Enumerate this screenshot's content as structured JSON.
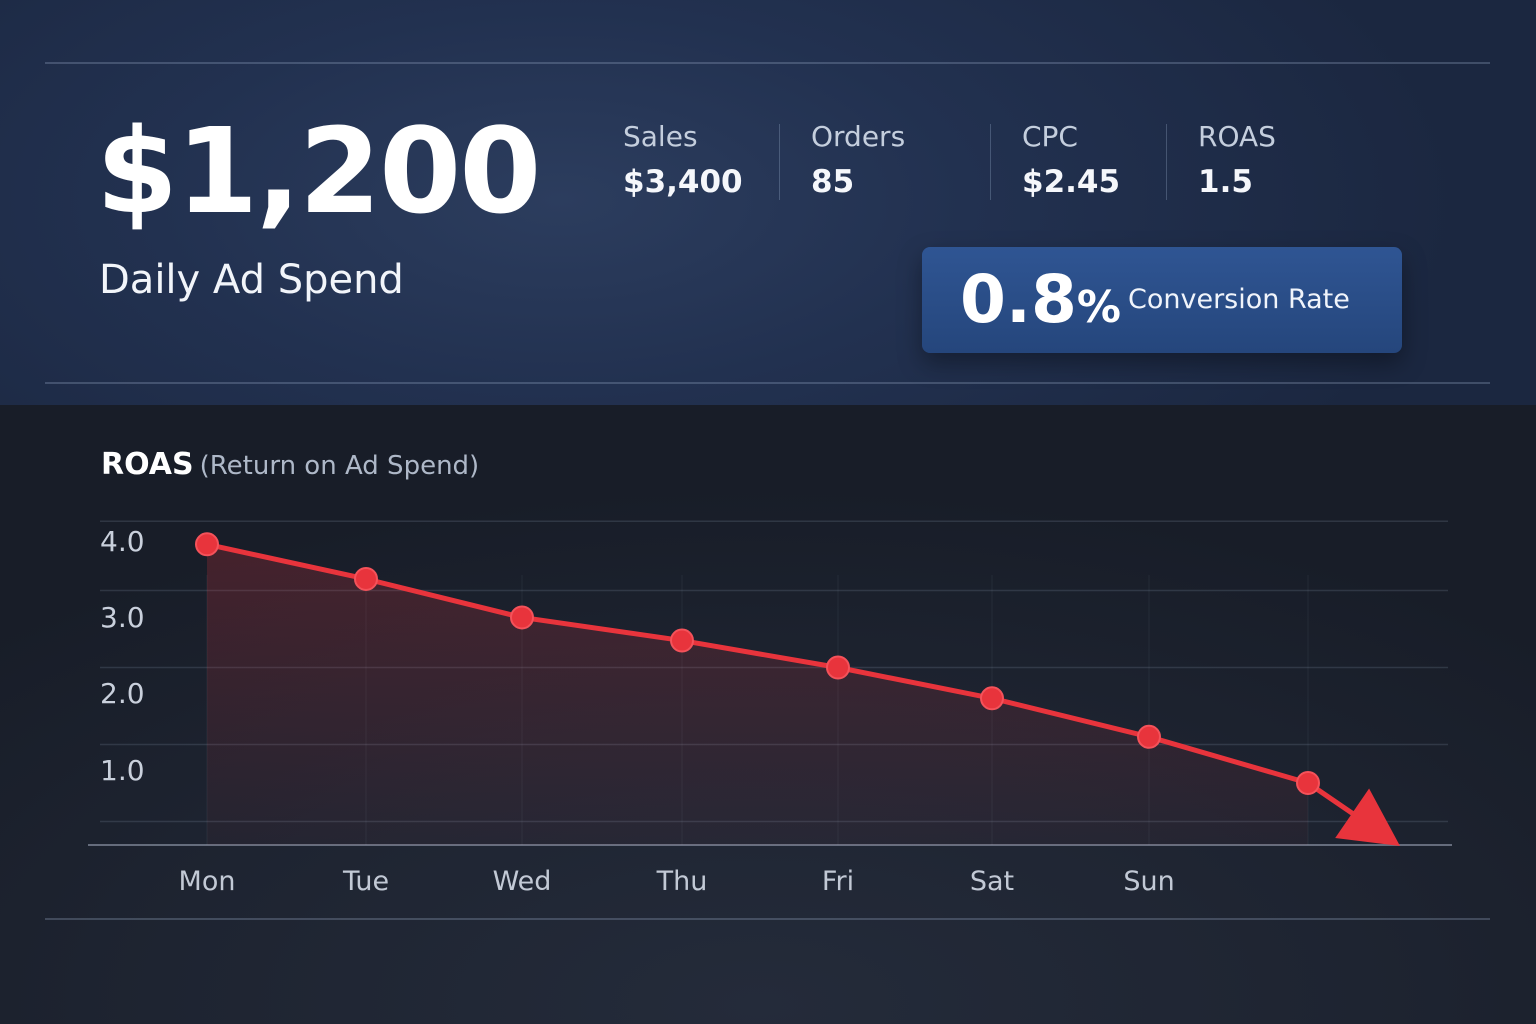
{
  "summary": {
    "ad_spend_value": "$1,200",
    "ad_spend_label": "Daily Ad Spend"
  },
  "metrics": [
    {
      "label": "Sales",
      "value": "$3,400"
    },
    {
      "label": "Orders",
      "value": "85"
    },
    {
      "label": "CPC",
      "value": "$2.45"
    },
    {
      "label": "ROAS",
      "value": "1.5"
    }
  ],
  "conversion": {
    "value": "0.8",
    "unit": "%",
    "label": "Conversion Rate"
  },
  "colors": {
    "line": "#e8343c",
    "card": "#2b4f8a",
    "background": "#1b2232"
  },
  "chart_data": {
    "type": "line",
    "title": "ROAS",
    "subtitle": "(Return on Ad Spend)",
    "categories": [
      "Mon",
      "Tue",
      "Wed",
      "Thu",
      "Fri",
      "Sat",
      "Sun",
      ""
    ],
    "series": [
      {
        "values": [
          4.1,
          3.65,
          3.15,
          2.85,
          2.5,
          2.1,
          1.6,
          1.0
        ]
      }
    ],
    "yticks": [
      "4.0",
      "3.0",
      "2.0",
      "1.0"
    ],
    "ylim": [
      0,
      4.6
    ],
    "grid": true,
    "trend_arrow": "down"
  }
}
